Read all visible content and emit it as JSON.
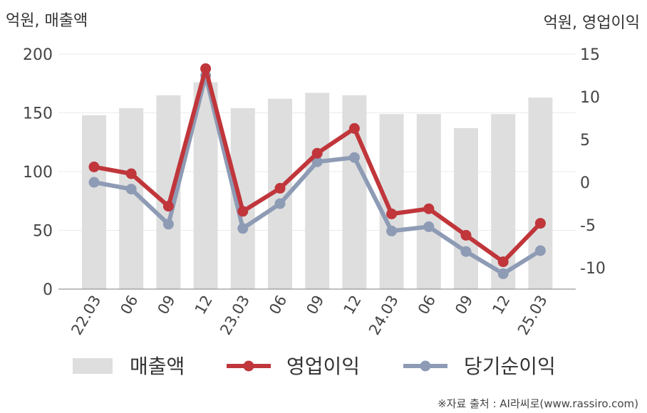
{
  "chart_data": {
    "type": "bar+line",
    "left_axis_unit": "억원, 매출액",
    "right_axis_unit": "억원, 영업이익",
    "categories": [
      "22.03",
      "06",
      "09",
      "12",
      "23.03",
      "06",
      "09",
      "12",
      "24.03",
      "06",
      "09",
      "12",
      "25.03"
    ],
    "left_ylim": [
      0,
      200
    ],
    "left_ticks": [
      "200",
      "150",
      "100",
      "50",
      "0"
    ],
    "right_ylim": [
      -12.5,
      15
    ],
    "right_ticks": [
      "15",
      "10",
      "5",
      "0",
      "-5",
      "-10"
    ],
    "series": [
      {
        "name": "매출액",
        "type": "bar",
        "axis": "left",
        "color": "#dedede",
        "values": [
          148,
          154,
          165,
          176,
          154,
          162,
          167,
          165,
          149,
          149,
          137,
          149,
          163
        ]
      },
      {
        "name": "영업이익",
        "type": "line",
        "axis": "right",
        "color": "#c0363b",
        "values": [
          1.8,
          1.0,
          -2.8,
          13.3,
          -3.4,
          -0.7,
          3.4,
          6.3,
          -3.7,
          -3.1,
          -6.2,
          -9.3,
          -4.8
        ]
      },
      {
        "name": "당기순이익",
        "type": "line",
        "axis": "right",
        "color": "#8e9bb5",
        "values": [
          0.0,
          -0.8,
          -4.9,
          12.5,
          -5.4,
          -2.5,
          2.4,
          2.9,
          -5.7,
          -5.2,
          -8.1,
          -10.7,
          -8.0
        ]
      }
    ],
    "grid": true,
    "legend_position": "bottom"
  },
  "source": "※자료 출처 : AI라씨로(www.rassiro.com)"
}
